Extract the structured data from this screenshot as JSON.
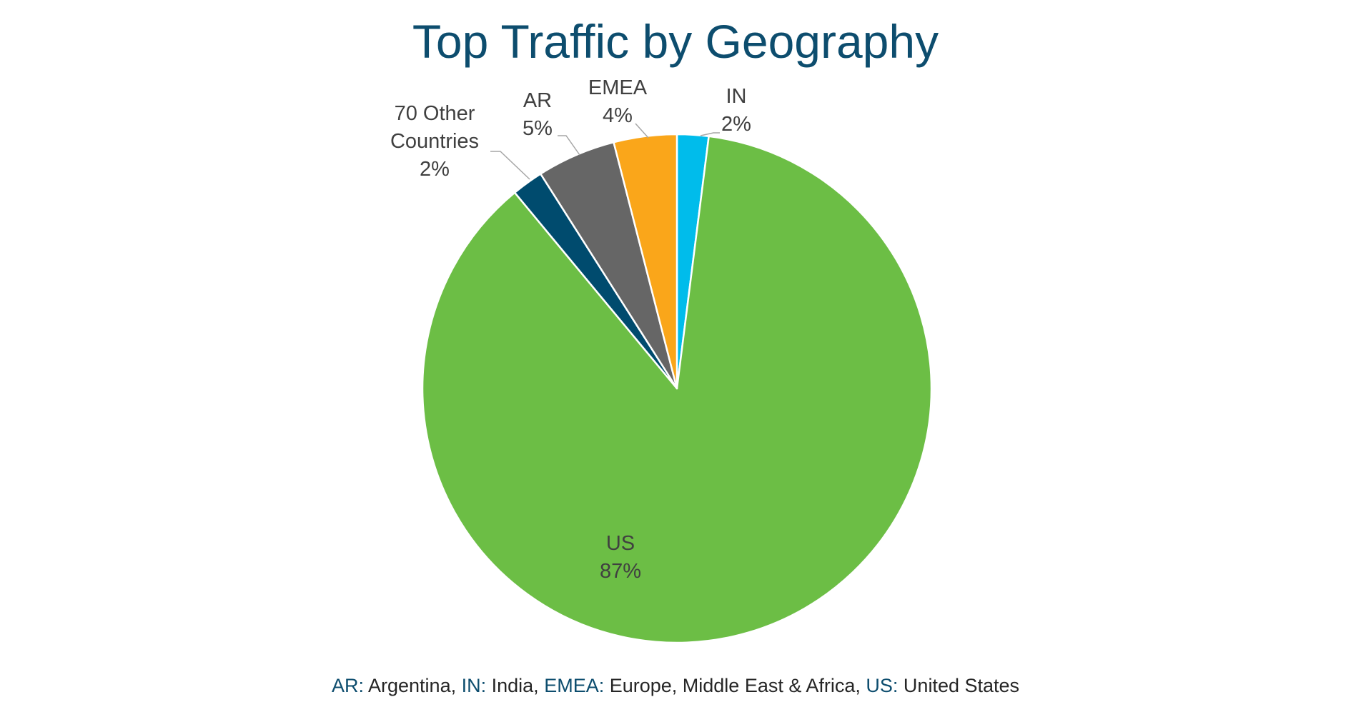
{
  "chart_data": {
    "type": "pie",
    "title": "Top Traffic by Geography",
    "slices": [
      {
        "label": "IN",
        "value": 2,
        "value_label": "2%",
        "color": "#00bceb"
      },
      {
        "label": "US",
        "value": 87,
        "value_label": "87%",
        "color": "#6cbe45"
      },
      {
        "label": "70 Other Countries",
        "label_lines": [
          "70 Other",
          "Countries"
        ],
        "value": 2,
        "value_label": "2%",
        "color": "#004b6e"
      },
      {
        "label": "AR",
        "value": 5,
        "value_label": "5%",
        "color": "#666666"
      },
      {
        "label": "EMEA",
        "value": 4,
        "value_label": "4%",
        "color": "#faa61a"
      }
    ]
  },
  "footnote": [
    {
      "abbr": "AR",
      "sep": ": ",
      "name": "Argentina",
      "trail": ", "
    },
    {
      "abbr": "IN",
      "sep": ": ",
      "name": "India",
      "trail": ", "
    },
    {
      "abbr": "EMEA",
      "sep": ": ",
      "name": "Europe, Middle East & Africa",
      "trail": ", "
    },
    {
      "abbr": "US",
      "sep": ": ",
      "name": "United States",
      "trail": ""
    }
  ]
}
